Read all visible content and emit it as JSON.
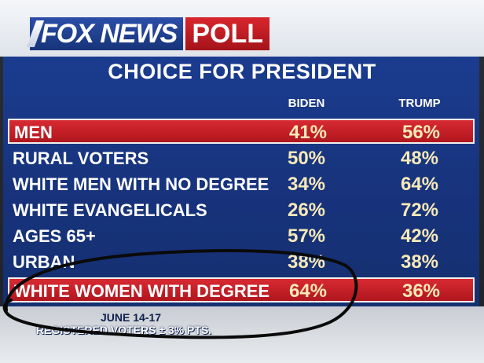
{
  "logo": {
    "fox_news": "FOX NEWS",
    "poll": "POLL"
  },
  "title": "CHOICE FOR PRESIDENT",
  "columns": {
    "biden": "BIDEN",
    "trump": "TRUMP"
  },
  "rows": [
    {
      "label": "MEN",
      "biden": "41%",
      "trump": "56%",
      "highlighted": true
    },
    {
      "label": "RURAL VOTERS",
      "biden": "50%",
      "trump": "48%",
      "highlighted": false
    },
    {
      "label": "WHITE MEN WITH NO DEGREE",
      "biden": "34%",
      "trump": "64%",
      "highlighted": false
    },
    {
      "label": "WHITE EVANGELICALS",
      "biden": "26%",
      "trump": "72%",
      "highlighted": false
    },
    {
      "label": "AGES 65+",
      "biden": "57%",
      "trump": "42%",
      "highlighted": false
    },
    {
      "label": "URBAN",
      "biden": "38%",
      "trump": "38%",
      "highlighted": false
    },
    {
      "label": "WHITE WOMEN WITH DEGREE",
      "biden": "64%",
      "trump": "36%",
      "highlighted": true
    }
  ],
  "footer": {
    "dates": "JUNE 14-17",
    "sample": "REGISTERED VOTERS ± 3% PTS."
  },
  "colors": {
    "panel_blue": "#17327a",
    "highlight_red": "#c41f27",
    "value_cream": "#f7e9b8",
    "annotation_ink": "#0a0a0a"
  }
}
